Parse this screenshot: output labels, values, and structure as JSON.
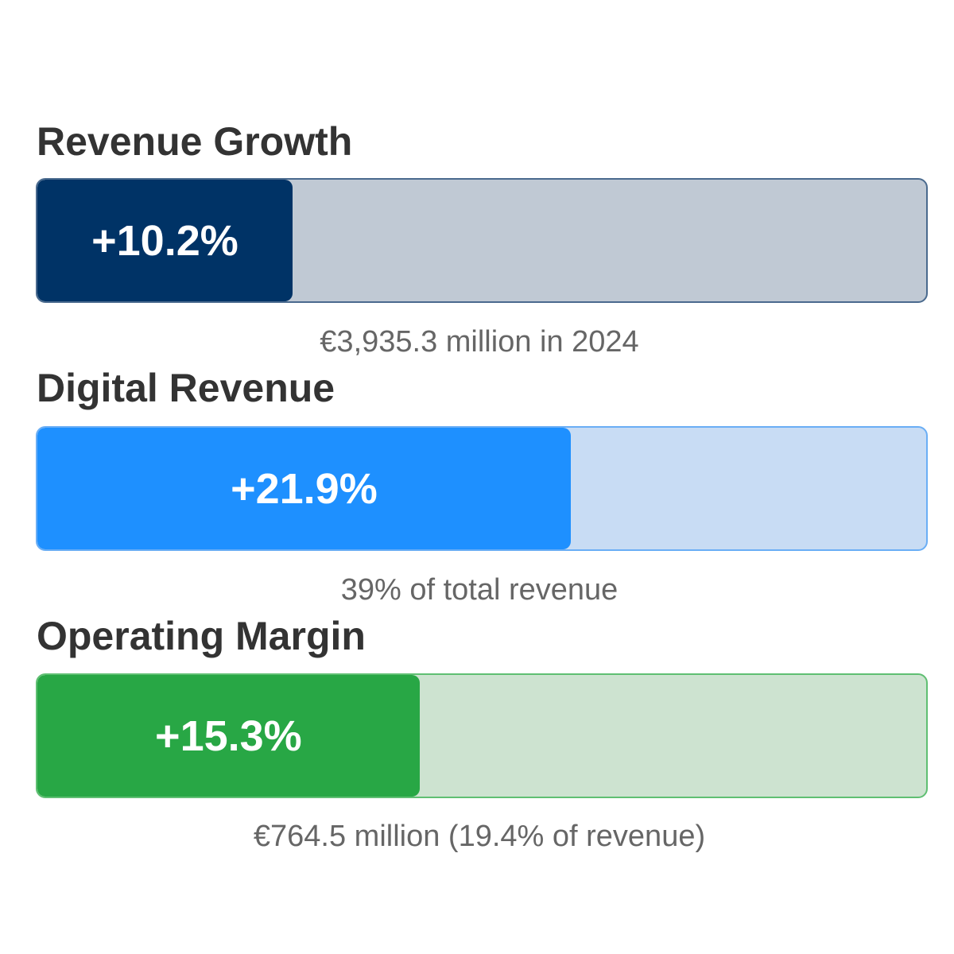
{
  "chart_data": {
    "type": "bar",
    "metrics": [
      {
        "title": "Revenue Growth",
        "label": "+10.2%",
        "value": 10.2,
        "fill_percent": 28.7,
        "caption": "€3,935.3 million in 2024",
        "color": "#003366",
        "track_color": "#c0c9d4",
        "border_color": "#4a6a8e"
      },
      {
        "title": "Digital Revenue",
        "label": "+21.9%",
        "value": 21.9,
        "fill_percent": 60,
        "caption": "39% of total revenue",
        "color": "#1e90ff",
        "track_color": "#c8dcf4",
        "border_color": "#6aaef5"
      },
      {
        "title": "Operating Margin",
        "label": "+15.3%",
        "value": 15.3,
        "fill_percent": 43,
        "caption": "€764.5 million (19.4% of revenue)",
        "color": "#28a745",
        "track_color": "#cde3d0",
        "border_color": "#5fbf72"
      }
    ]
  }
}
